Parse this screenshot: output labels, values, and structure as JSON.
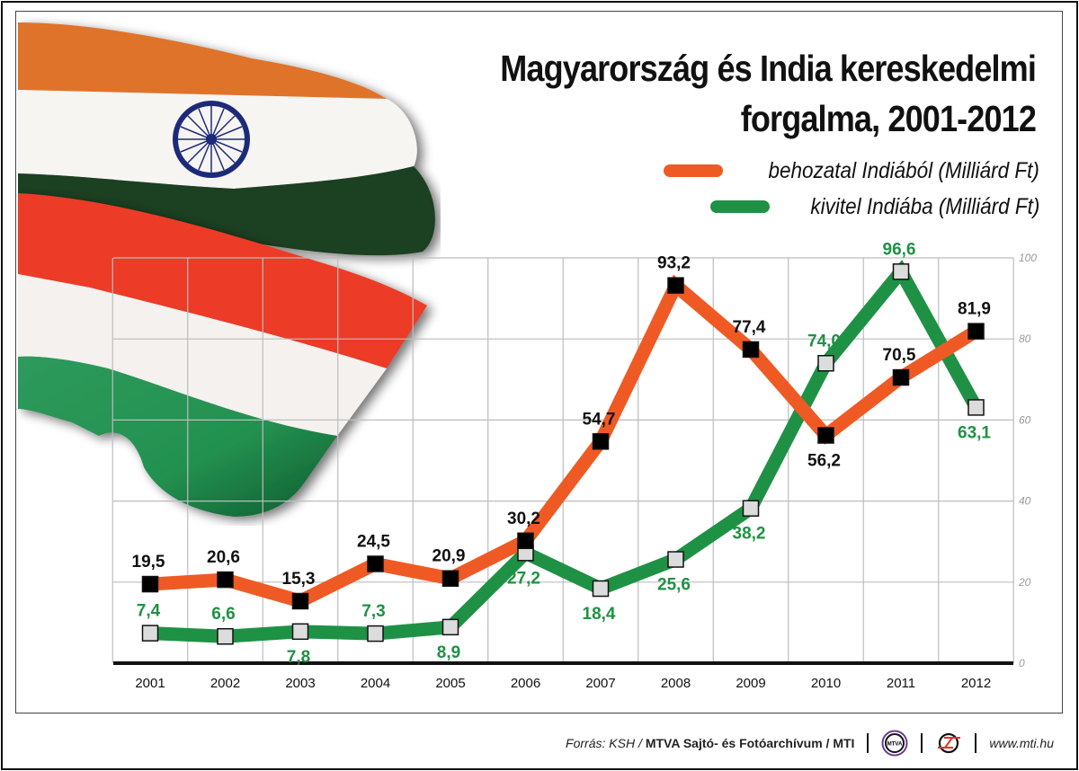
{
  "title_line1": "Magyarország és India kereskedelmi",
  "title_line2": "forgalma, 2001-2012",
  "legend": [
    {
      "label": "behozatal Indiából (Milliárd Ft)",
      "color": "#ef5a24"
    },
    {
      "label": "kivitel Indiába (Milliárd Ft)",
      "color": "#1f9145"
    }
  ],
  "footer": {
    "source": "Forrás: KSH /",
    "agency": "MTVA Sajtó- és Fotóarchívum / MTI",
    "logo1_text": "MTVA",
    "url": "www.mti.hu"
  },
  "images": {
    "flags": "Waving Indian and Hungarian flags illustration"
  },
  "chart_data": {
    "type": "line",
    "title": "Magyarország és India kereskedelmi forgalma, 2001-2012",
    "xlabel": "",
    "ylabel": "",
    "categories": [
      "2001",
      "2002",
      "2003",
      "2004",
      "2005",
      "2006",
      "2007",
      "2008",
      "2009",
      "2010",
      "2011",
      "2012"
    ],
    "ylim": [
      0,
      100
    ],
    "yticks": [
      0,
      20,
      40,
      60,
      80,
      100
    ],
    "ytick_labels": [
      "0",
      "20",
      "40",
      "60",
      "80",
      "100"
    ],
    "y_axis_position": "right",
    "grid": true,
    "legend_position": "top-right",
    "series": [
      {
        "name": "behozatal Indiából (Milliárd Ft)",
        "color": "#ef5a24",
        "marker": "black-square",
        "label_color": "#111111",
        "values": [
          19.5,
          20.6,
          15.3,
          24.5,
          20.9,
          30.2,
          54.7,
          93.2,
          77.4,
          56.2,
          70.5,
          81.9
        ],
        "labels": [
          "19,5",
          "20,6",
          "15,3",
          "24,5",
          "20,9",
          "30,2",
          "54,7",
          "93,2",
          "77,4",
          "56,2",
          "70,5",
          "81,9"
        ],
        "label_side": [
          "above",
          "above",
          "above",
          "above",
          "above",
          "above",
          "above",
          "above",
          "above",
          "below",
          "above",
          "above"
        ]
      },
      {
        "name": "kivitel Indiába (Milliárd Ft)",
        "color": "#1f9145",
        "marker": "grey-square",
        "label_color": "#1f9145",
        "values": [
          7.4,
          6.6,
          7.8,
          7.3,
          8.9,
          27.2,
          18.4,
          25.6,
          38.2,
          74.0,
          96.6,
          63.1
        ],
        "labels": [
          "7,4",
          "6,6",
          "7,8",
          "7,3",
          "8,9",
          "27,2",
          "18,4",
          "25,6",
          "38,2",
          "74,0",
          "96,6",
          "63,1"
        ],
        "label_side": [
          "above",
          "above",
          "below",
          "above",
          "below",
          "below",
          "below",
          "below",
          "below",
          "above",
          "above",
          "below"
        ]
      }
    ]
  }
}
